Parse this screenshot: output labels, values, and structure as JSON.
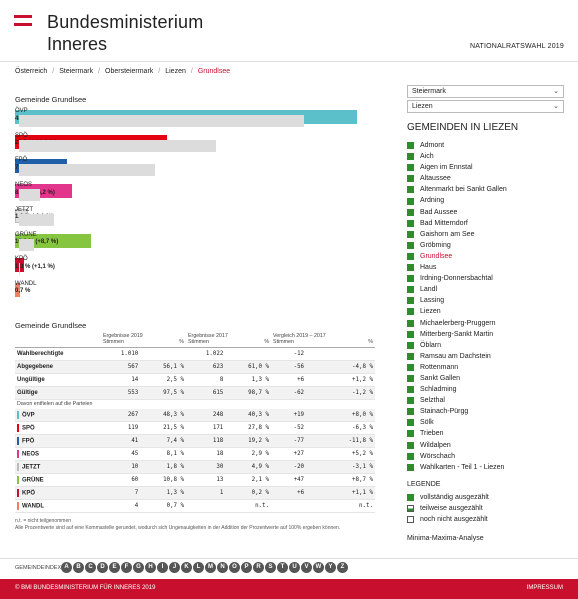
{
  "header": {
    "title_line1": "Bundesministerium",
    "title_line2": "Inneres",
    "election": "NATIONALRATSWAHL 2019",
    "flag_color": "#c8102e"
  },
  "breadcrumb": [
    "Österreich",
    "Steiermark",
    "Obersteiermark",
    "Liezen",
    "Grundlsee"
  ],
  "chart_title": "Gemeinde Grundlsee",
  "chart_data": {
    "type": "bar",
    "orientation": "horizontal",
    "categories": [
      "ÖVP",
      "SPÖ",
      "FPÖ",
      "NEOS",
      "JETZT",
      "GRÜNE",
      "KPÖ",
      "WANDL"
    ],
    "series": [
      {
        "values": [
          48.3,
          21.5,
          7.4,
          8.1,
          1.8,
          10.8,
          1.3,
          0.7
        ]
      },
      {
        "values": [
          40.3,
          27.8,
          19.2,
          2.9,
          4.9,
          2.1,
          0.2,
          null
        ]
      }
    ],
    "labels": [
      "48,3 % (+8,0 %)",
      "21,5 % (-6,3 %)",
      "7,4 % (-11,8 %)",
      "8,1 % (+5,2 %)",
      "1,8 % (-3,1 %)",
      "10,8 % (+8,7 %)",
      "1,3 % (+1,1 %)",
      "0,7 %"
    ],
    "colors": [
      "#5bc0c9",
      "#e3000f",
      "#1e5fa8",
      "#e2358c",
      "#e0e0e0",
      "#86c540",
      "#c8102e",
      "#f08060"
    ],
    "prev_color": "#dcdcdc",
    "xlim": [
      0,
      50
    ]
  },
  "table_title": "Gemeinde Grundlsee",
  "table": {
    "headers": {
      "e2019": "Ergebnisse 2019",
      "e2017": "Ergebnisse 2017",
      "cmp": "Vergleich 2019 – 2017",
      "stimmen": "Stimmen",
      "pct": "%"
    },
    "summary_rows": [
      {
        "label": "Wahlberechtigte",
        "v19": "1.010",
        "p19": "",
        "v17": "1.022",
        "p17": "",
        "dv": "-12",
        "dp": ""
      },
      {
        "label": "Abgegebene",
        "v19": "567",
        "p19": "56,1 %",
        "v17": "623",
        "p17": "61,0 %",
        "dv": "-56",
        "dp": "-4,8 %"
      },
      {
        "label": "Ungültige",
        "v19": "14",
        "p19": "2,5 %",
        "v17": "8",
        "p17": "1,3 %",
        "dv": "+6",
        "dp": "+1,2 %"
      },
      {
        "label": "Gültige",
        "v19": "553",
        "p19": "97,5 %",
        "v17": "615",
        "p17": "98,7 %",
        "dv": "-62",
        "dp": "-1,2 %"
      }
    ],
    "note": "Davon entfielen auf die Parteien",
    "party_rows": [
      {
        "label": "ÖVP",
        "color": "#5bc0c9",
        "v19": "267",
        "p19": "48,3 %",
        "v17": "248",
        "p17": "40,3 %",
        "dv": "+19",
        "dp": "+8,0 %"
      },
      {
        "label": "SPÖ",
        "color": "#e3000f",
        "v19": "119",
        "p19": "21,5 %",
        "v17": "171",
        "p17": "27,8 %",
        "dv": "-52",
        "dp": "-6,3 %"
      },
      {
        "label": "FPÖ",
        "color": "#1e5fa8",
        "v19": "41",
        "p19": "7,4 %",
        "v17": "118",
        "p17": "19,2 %",
        "dv": "-77",
        "dp": "-11,8 %"
      },
      {
        "label": "NEOS",
        "color": "#e2358c",
        "v19": "45",
        "p19": "8,1 %",
        "v17": "18",
        "p17": "2,9 %",
        "dv": "+27",
        "dp": "+5,2 %"
      },
      {
        "label": "JETZT",
        "color": "#bbbbbb",
        "v19": "10",
        "p19": "1,8 %",
        "v17": "30",
        "p17": "4,9 %",
        "dv": "-20",
        "dp": "-3,1 %"
      },
      {
        "label": "GRÜNE",
        "color": "#86c540",
        "v19": "60",
        "p19": "10,8 %",
        "v17": "13",
        "p17": "2,1 %",
        "dv": "+47",
        "dp": "+8,7 %"
      },
      {
        "label": "KPÖ",
        "color": "#c8102e",
        "v19": "7",
        "p19": "1,3 %",
        "v17": "1",
        "p17": "0,2 %",
        "dv": "+6",
        "dp": "+1,1 %"
      },
      {
        "label": "WANDL",
        "color": "#f08060",
        "v19": "4",
        "p19": "0,7 %",
        "v17": "",
        "p17": "n.t.",
        "dv": "",
        "dp": "n.t."
      }
    ]
  },
  "footnotes": {
    "line1": "n.t. = nicht teilgenommen",
    "line2": "Alle Prozentwerte sind auf eine Kommastelle gerundet, wodurch sich Ungenauigkeiten in der Addition der Prozentwerte auf 100% ergeben können."
  },
  "sidebar": {
    "state_select": "Steiermark",
    "district_select": "Liezen",
    "title": "GEMEINDEN IN LIEZEN",
    "municipalities": [
      "Admont",
      "Aich",
      "Aigen im Ennstal",
      "Altaussee",
      "Altenmarkt bei Sankt Gallen",
      "Ardning",
      "Bad Aussee",
      "Bad Mitterndorf",
      "Gaishorn am See",
      "Gröbming",
      "Grundlsee",
      "Haus",
      "Irdning-Donnersbachtal",
      "Landl",
      "Lassing",
      "Liezen",
      "Michaelerberg-Pruggern",
      "Mitterberg-Sankt Martin",
      "Öblarn",
      "Ramsau am Dachstein",
      "Rottenmann",
      "Sankt Gallen",
      "Schladming",
      "Selzthal",
      "Stainach-Pürgg",
      "Sölk",
      "Trieben",
      "Wildalpen",
      "Wörschach",
      "Wahlkarten - Teil 1 - Liezen"
    ],
    "active": "Grundlsee",
    "municipality_color": "#2e8b2e",
    "legend_title": "LEGENDE",
    "legend": [
      "vollständig ausgezählt",
      "teilweise ausgezählt",
      "noch nicht ausgezählt"
    ],
    "minmax": "Minima-Maxima-Analyse"
  },
  "index": {
    "label": "GEMEINDEINDEX",
    "letters": [
      "A",
      "B",
      "C",
      "D",
      "E",
      "F",
      "G",
      "H",
      "I",
      "J",
      "K",
      "L",
      "M",
      "N",
      "O",
      "P",
      "R",
      "S",
      "T",
      "U",
      "V",
      "W",
      "Y",
      "Z"
    ]
  },
  "footer": {
    "copyright": "© BMI BUNDESMINISTERIUM FÜR INNERES 2019",
    "impressum": "IMPRESSUM",
    "bg_color": "#c8102e"
  }
}
